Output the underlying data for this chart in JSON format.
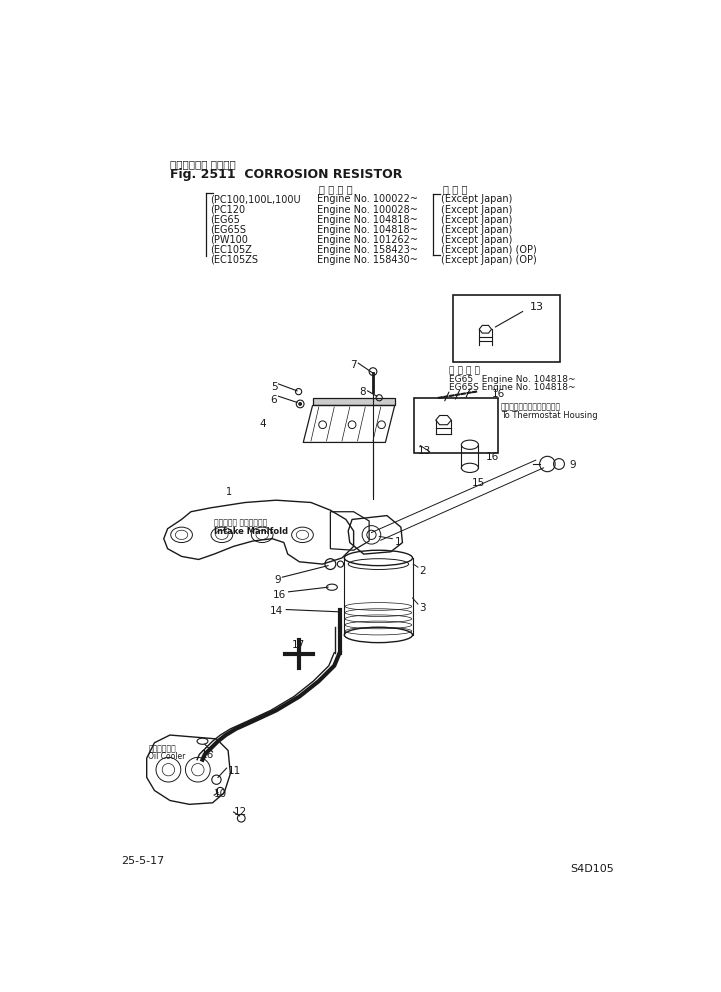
{
  "title_japanese": "コロージョン レジスタ",
  "title_english": "CORROSION RESISTOR",
  "fig_number": "Fig. 2511",
  "text_color": "#1a1a1a",
  "page_ref": "25-5-17",
  "part_number": "S4D105",
  "header_lines": [
    {
      "model": "(PC100,100L,100U",
      "engine": "Engine No. 100022~",
      "region": "(Except Japan)"
    },
    {
      "model": "(PC120",
      "engine": "Engine No. 100028~",
      "region": "(Except Japan)"
    },
    {
      "model": "(EG65",
      "engine": "Engine No. 104818~",
      "region": "(Except Japan)"
    },
    {
      "model": "(EG65S",
      "engine": "Engine No. 104818~",
      "region": "(Except Japan)"
    },
    {
      "model": "(PW100",
      "engine": "Engine No. 101262~",
      "region": "(Except Japan)"
    },
    {
      "model": "(EC105Z",
      "engine": "Engine No. 158423~",
      "region": "(Except Japan) (OP)"
    },
    {
      "model": "(EC105ZS",
      "engine": "Engine No. 158430~",
      "region": "(Except Japan) (OP)"
    }
  ],
  "col_header_engine": "運 用 番 号",
  "col_header_region": "海 外 向",
  "inset_note_header": "運 用 番 号",
  "inset_note_1": "EG65   Engine No. 104818~",
  "inset_note_2": "EG65S Engine No. 104818~",
  "thermostat_japanese": "サーモスタットハウジングへ",
  "thermostat_english": "To Thermostat Housing",
  "intake_japanese": "インテーク マニホールド",
  "intake_english": "Intake Manifold",
  "oil_cooler_japanese": "オイルクーラ",
  "oil_cooler_english": "Oil Cooler"
}
